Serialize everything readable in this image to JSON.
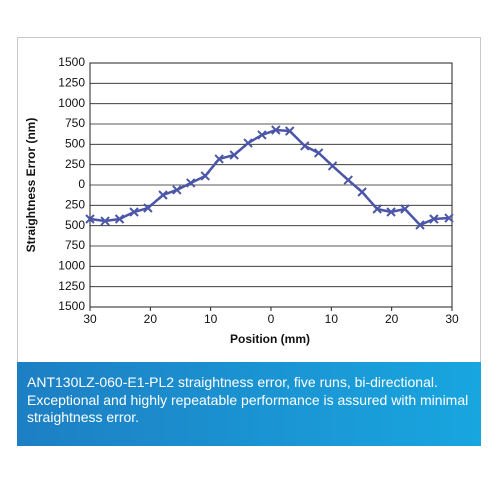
{
  "chart_data": {
    "type": "line",
    "x_label": "Position (mm)",
    "y_label": "Straightness Error (nm)",
    "x": [
      -30,
      -27.5,
      -25.1,
      -22.7,
      -20.4,
      -17.9,
      -15.6,
      -13.3,
      -10.9,
      -8.6,
      -6.1,
      -3.8,
      -1.5,
      0.8,
      3.1,
      5.6,
      7.9,
      10.2,
      12.8,
      15.1,
      17.6,
      19.9,
      22.2,
      24.7,
      27.0,
      29.5
    ],
    "series": [
      {
        "color": "#4b56a8",
        "values": [
          -418,
          -443,
          -418,
          -332,
          -283,
          -123,
          -61,
          25,
          111,
          320,
          369,
          516,
          615,
          676,
          664,
          480,
          394,
          234,
          61,
          -86,
          -295,
          -332,
          -295,
          -492,
          -418,
          -406
        ]
      }
    ],
    "xlim": [
      -30,
      30
    ],
    "xticks": [
      {
        "value": -30,
        "label": "30"
      },
      {
        "value": -20,
        "label": "20"
      },
      {
        "value": -10,
        "label": "10"
      },
      0,
      10,
      20,
      30
    ],
    "ylim": [
      -1500,
      1500
    ],
    "yticks": [
      {
        "value": -1500,
        "label": "1500"
      },
      {
        "value": -1250,
        "label": "1250"
      },
      {
        "value": -1000,
        "label": "1000"
      },
      {
        "value": -750,
        "label": "750"
      },
      {
        "value": -500,
        "label": "500"
      },
      {
        "value": -250,
        "label": "250"
      },
      0,
      250,
      500,
      750,
      1000,
      1250,
      1500
    ],
    "grid": true,
    "caption": "ANT130LZ-060-E1-PL2 straightness error, five runs, bi-directional. Exceptional and highly repeatable performance is assured with minimal straightness error."
  }
}
